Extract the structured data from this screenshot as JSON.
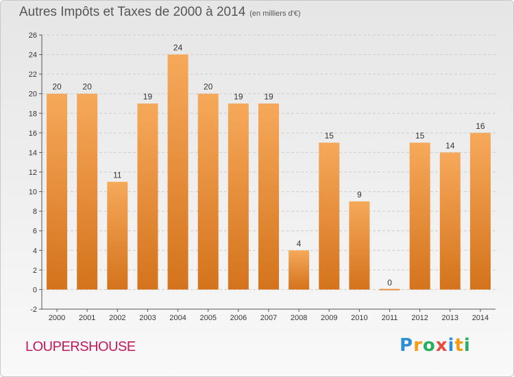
{
  "title": "Autres Impôts et Taxes de 2000 à 2014",
  "subtitle": "(en milliers d'€)",
  "commune": "LOUPERSHOUSE",
  "logo": {
    "letters": [
      "P",
      "r",
      "o",
      "x",
      "i",
      "t",
      "i"
    ],
    "colors": [
      "#2e8fd6",
      "#f39c12",
      "#27ae60",
      "#e74c3c",
      "#2e8fd6",
      "#f39c12",
      "#27ae60"
    ]
  },
  "colors": {
    "bar_top": "#f6a95a",
    "bar_bottom": "#d4731c",
    "grid": "#cccccc",
    "axis": "#555555"
  },
  "chart_data": {
    "type": "bar",
    "categories": [
      "2000",
      "2001",
      "2002",
      "2003",
      "2004",
      "2005",
      "2006",
      "2007",
      "2008",
      "2009",
      "2010",
      "2011",
      "2012",
      "2013",
      "2014"
    ],
    "values": [
      20,
      20,
      11,
      19,
      24,
      20,
      19,
      19,
      4,
      15,
      9,
      0,
      15,
      14,
      16
    ],
    "data_labels": [
      "20",
      "20",
      "11",
      "19",
      "24",
      "20",
      "19",
      "19",
      "4",
      "15",
      "9",
      "0",
      "15",
      "14",
      "16"
    ],
    "ylim": [
      -2,
      26
    ],
    "yticks": [
      -2,
      0,
      2,
      4,
      6,
      8,
      10,
      12,
      14,
      16,
      18,
      20,
      22,
      24,
      26
    ],
    "grid": "horizontal dashed"
  }
}
